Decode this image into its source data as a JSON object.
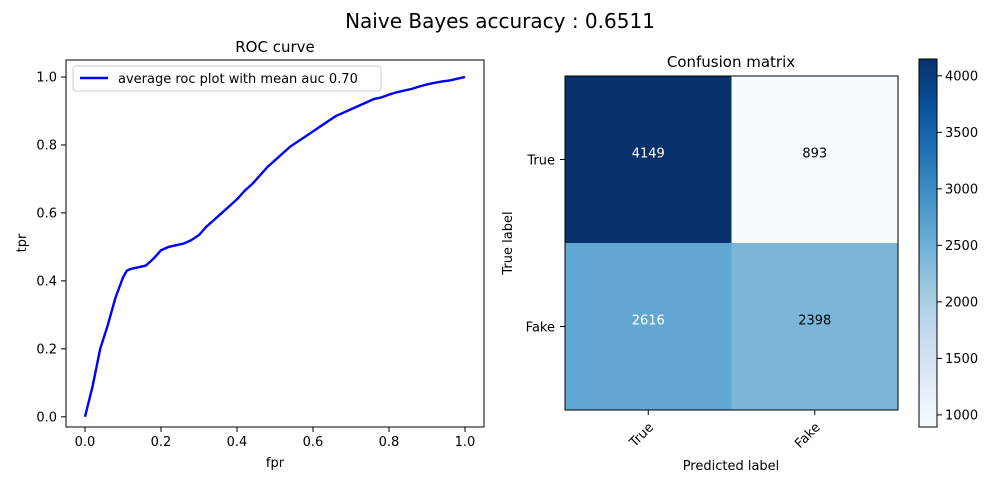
{
  "figure": {
    "suptitle": "Naive Bayes accuracy : 0.6511"
  },
  "colors": {
    "roc_line": "#0000ff",
    "cmap_low": "#f7fbff",
    "cmap_high": "#08306b"
  },
  "chart_data": [
    {
      "type": "line",
      "title": "ROC curve",
      "xlabel": "fpr",
      "ylabel": "tpr",
      "xlim": [
        -0.05,
        1.05
      ],
      "ylim": [
        -0.03,
        1.05
      ],
      "xticks": [
        0.0,
        0.2,
        0.4,
        0.6,
        0.8,
        1.0
      ],
      "yticks": [
        0.0,
        0.2,
        0.4,
        0.6,
        0.8,
        1.0
      ],
      "tick_labels_x": [
        "0.0",
        "0.2",
        "0.4",
        "0.6",
        "0.8",
        "1.0"
      ],
      "tick_labels_y": [
        "0.0",
        "0.2",
        "0.4",
        "0.6",
        "0.8",
        "1.0"
      ],
      "grid": false,
      "legend_position": "top-left",
      "series": [
        {
          "name": "average roc plot with mean auc 0.70",
          "x": [
            0.0,
            0.02,
            0.04,
            0.06,
            0.08,
            0.1,
            0.11,
            0.12,
            0.14,
            0.16,
            0.18,
            0.2,
            0.22,
            0.24,
            0.26,
            0.28,
            0.3,
            0.32,
            0.34,
            0.36,
            0.38,
            0.4,
            0.42,
            0.44,
            0.46,
            0.48,
            0.5,
            0.52,
            0.54,
            0.56,
            0.58,
            0.6,
            0.62,
            0.64,
            0.66,
            0.68,
            0.7,
            0.72,
            0.74,
            0.76,
            0.78,
            0.8,
            0.82,
            0.84,
            0.86,
            0.88,
            0.9,
            0.92,
            0.94,
            0.96,
            0.98,
            1.0
          ],
          "y": [
            0.0,
            0.09,
            0.2,
            0.27,
            0.35,
            0.41,
            0.43,
            0.435,
            0.44,
            0.445,
            0.465,
            0.49,
            0.5,
            0.505,
            0.51,
            0.52,
            0.535,
            0.56,
            0.58,
            0.6,
            0.62,
            0.64,
            0.665,
            0.685,
            0.71,
            0.735,
            0.755,
            0.775,
            0.795,
            0.81,
            0.825,
            0.84,
            0.855,
            0.87,
            0.885,
            0.895,
            0.905,
            0.915,
            0.925,
            0.935,
            0.94,
            0.948,
            0.955,
            0.96,
            0.965,
            0.972,
            0.978,
            0.983,
            0.987,
            0.99,
            0.995,
            1.0
          ]
        }
      ]
    },
    {
      "type": "heatmap",
      "title": "Confusion matrix",
      "xlabel": "Predicted label",
      "ylabel": "True label",
      "row_labels": [
        "True",
        "Fake"
      ],
      "col_labels": [
        "True",
        "Fake"
      ],
      "values": [
        [
          4149,
          893
        ],
        [
          2616,
          2398
        ]
      ],
      "colorbar": {
        "min": 893,
        "max": 4149,
        "ticks": [
          1000,
          1500,
          2000,
          2500,
          3000,
          3500,
          4000
        ],
        "tick_labels": [
          "1000",
          "1500",
          "2000",
          "2500",
          "3000",
          "3500",
          "4000"
        ]
      }
    }
  ]
}
